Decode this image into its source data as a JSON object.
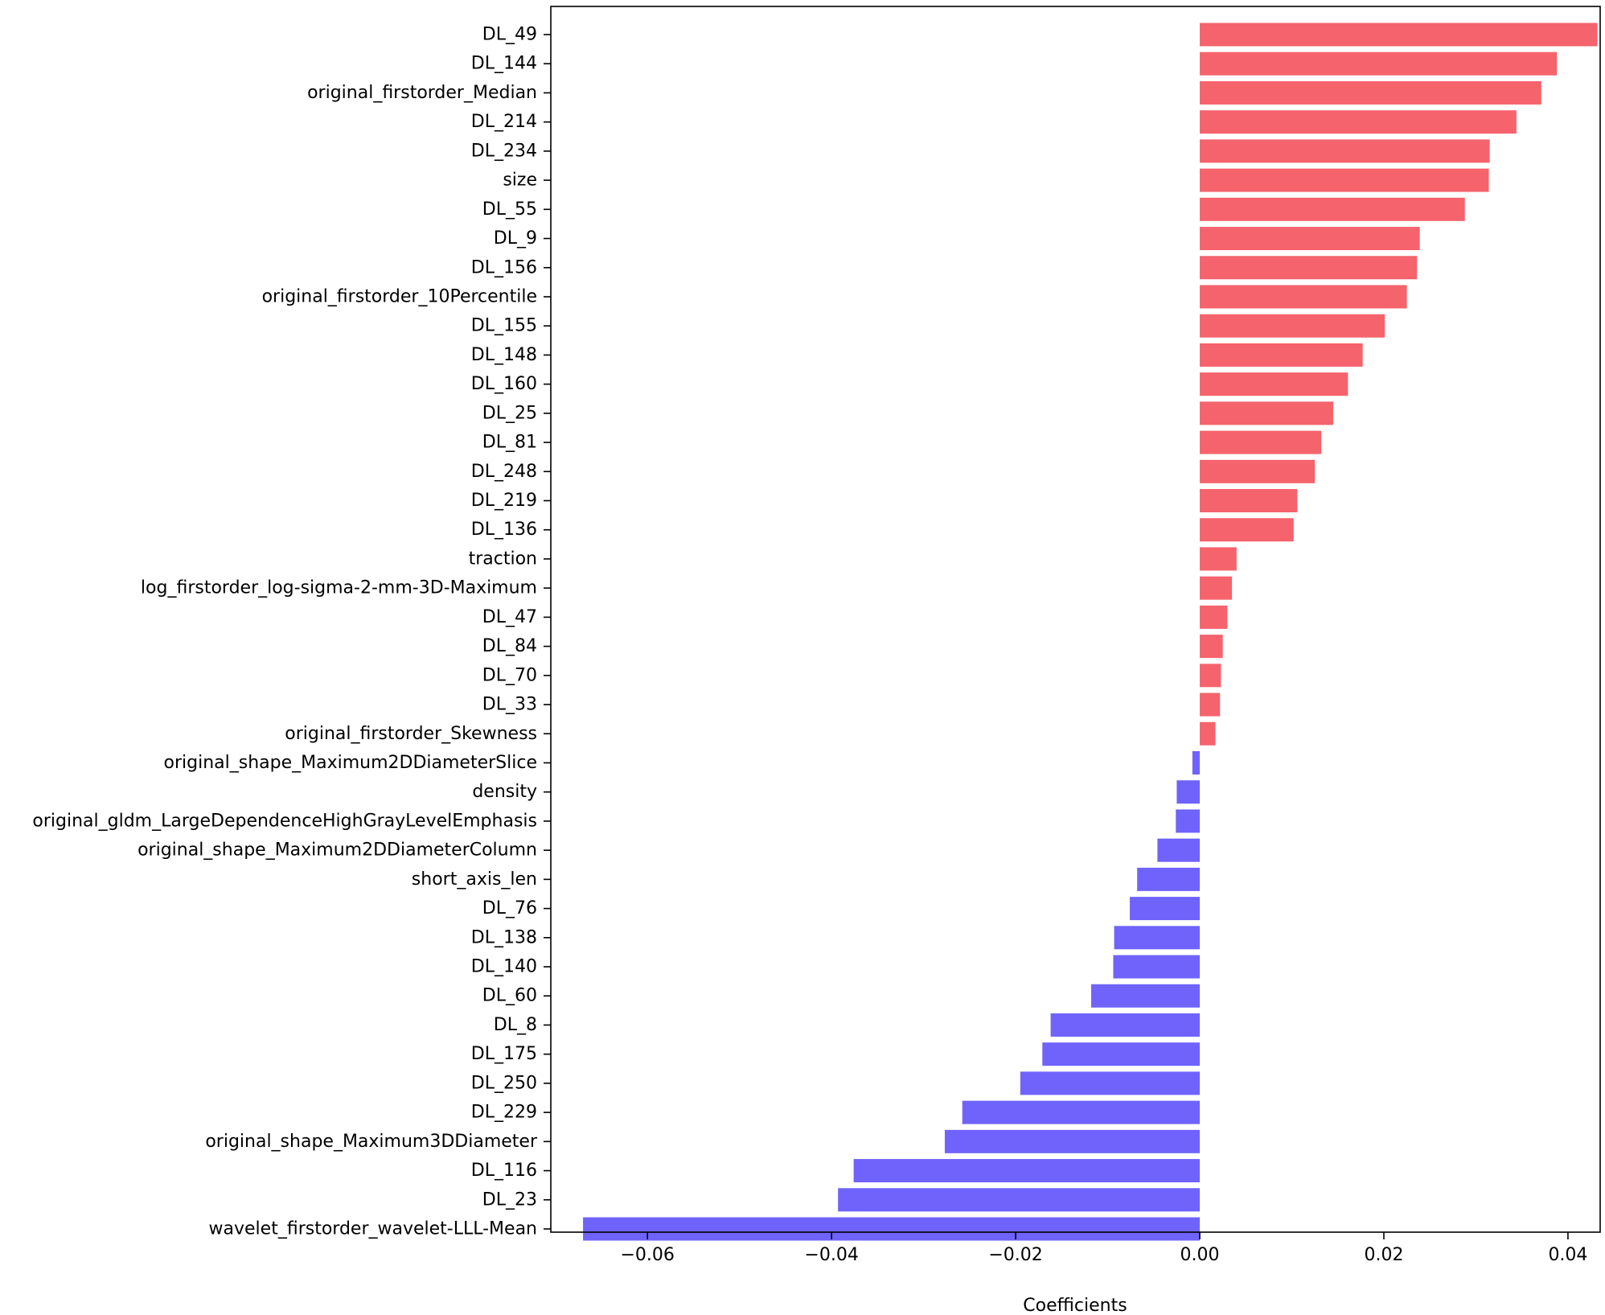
{
  "chart_data": {
    "type": "bar",
    "orientation": "horizontal",
    "xlabel": "Coefficients",
    "ylabel": "",
    "title": "",
    "xlim": [
      -0.0705,
      0.0435
    ],
    "xticks": [
      -0.06,
      -0.04,
      -0.02,
      0.0,
      0.02,
      0.04
    ],
    "xtick_labels": [
      "−0.06",
      "−0.04",
      "−0.02",
      "0.00",
      "0.02",
      "0.04"
    ],
    "grid": false,
    "colors": {
      "positive": "#F5636C",
      "negative": "#6F63FC"
    },
    "categories": [
      "DL_49",
      "DL_144",
      "original_firstorder_Median",
      "DL_214",
      "DL_234",
      "size",
      "DL_55",
      "DL_9",
      "DL_156",
      "original_firstorder_10Percentile",
      "DL_155",
      "DL_148",
      "DL_160",
      "DL_25",
      "DL_81",
      "DL_248",
      "DL_219",
      "DL_136",
      "traction",
      "log_firstorder_log-sigma-2-mm-3D-Maximum",
      "DL_47",
      "DL_84",
      "DL_70",
      "DL_33",
      "original_firstorder_Skewness",
      "original_shape_Maximum2DDiameterSlice",
      "density",
      "original_gldm_LargeDependenceHighGrayLevelEmphasis",
      "original_shape_Maximum2DDiameterColumn",
      "short_axis_len",
      "DL_76",
      "DL_138",
      "DL_140",
      "DL_60",
      "DL_8",
      "DL_175",
      "DL_250",
      "DL_229",
      "original_shape_Maximum3DDiameter",
      "DL_116",
      "DL_23",
      "wavelet_firstorder_wavelet-LLL-Mean"
    ],
    "values": [
      0.0432,
      0.0388,
      0.0371,
      0.0344,
      0.0315,
      0.0314,
      0.0288,
      0.0239,
      0.0236,
      0.0225,
      0.0201,
      0.0177,
      0.0161,
      0.0145,
      0.0132,
      0.0125,
      0.0106,
      0.0102,
      0.004,
      0.0035,
      0.003,
      0.0025,
      0.0023,
      0.0022,
      0.0017,
      -0.0008,
      -0.0025,
      -0.0026,
      -0.0046,
      -0.0068,
      -0.0076,
      -0.0093,
      -0.0094,
      -0.0118,
      -0.0162,
      -0.0171,
      -0.0195,
      -0.0258,
      -0.0277,
      -0.0376,
      -0.0393,
      -0.067
    ]
  }
}
